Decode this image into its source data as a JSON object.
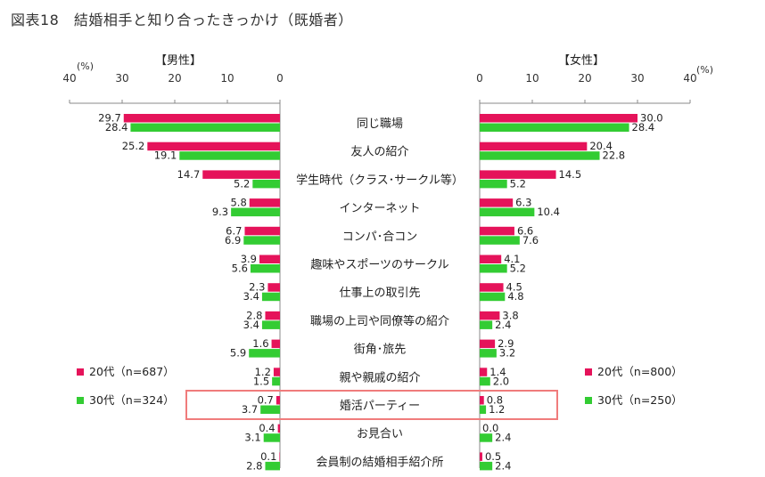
{
  "title": "図表18　結婚相手と知り合ったきっかけ（既婚者）",
  "colors": {
    "age20": "#E5135A",
    "age30": "#33CC33",
    "highlight": "#F07C7C",
    "axis": "#888888"
  },
  "chart_data": {
    "type": "bar",
    "orientation": "horizontal-butterfly",
    "title": "図表18　結婚相手と知り合ったきっかけ（既婚者）",
    "unit": "(%)",
    "categories": [
      "同じ職場",
      "友人の紹介",
      "学生時代（クラス･サークル等）",
      "インターネット",
      "コンパ･合コン",
      "趣味やスポーツのサークル",
      "仕事上の取引先",
      "職場の上司や同僚等の紹介",
      "街角･旅先",
      "親や親戚の紹介",
      "婚活パーティー",
      "お見合い",
      "会員制の結婚相手紹介所"
    ],
    "highlight_category": "婚活パーティー",
    "panels": [
      {
        "label": "【男性】",
        "side": "left",
        "xlim": [
          0,
          40
        ],
        "ticks": [
          40,
          30,
          20,
          10,
          0
        ],
        "series": [
          {
            "name": "20代（n=687）",
            "values": [
              29.7,
              25.2,
              14.7,
              5.8,
              6.7,
              3.9,
              2.3,
              2.8,
              1.6,
              1.2,
              0.7,
              0.4,
              0.1
            ]
          },
          {
            "name": "30代（n=324）",
            "values": [
              28.4,
              19.1,
              5.2,
              9.3,
              6.9,
              5.6,
              3.4,
              3.4,
              5.9,
              1.5,
              3.7,
              3.1,
              2.8
            ]
          }
        ]
      },
      {
        "label": "【女性】",
        "side": "right",
        "xlim": [
          0,
          40
        ],
        "ticks": [
          0,
          10,
          20,
          30,
          40
        ],
        "series": [
          {
            "name": "20代（n=800）",
            "values": [
              30.0,
              20.4,
              14.5,
              6.3,
              6.6,
              4.1,
              4.5,
              3.8,
              2.9,
              1.4,
              0.8,
              0.0,
              0.5
            ]
          },
          {
            "name": "30代（n=250）",
            "values": [
              28.4,
              22.8,
              5.2,
              10.4,
              7.6,
              5.2,
              4.8,
              2.4,
              3.2,
              2.0,
              1.2,
              2.4,
              2.4
            ]
          }
        ]
      }
    ]
  }
}
